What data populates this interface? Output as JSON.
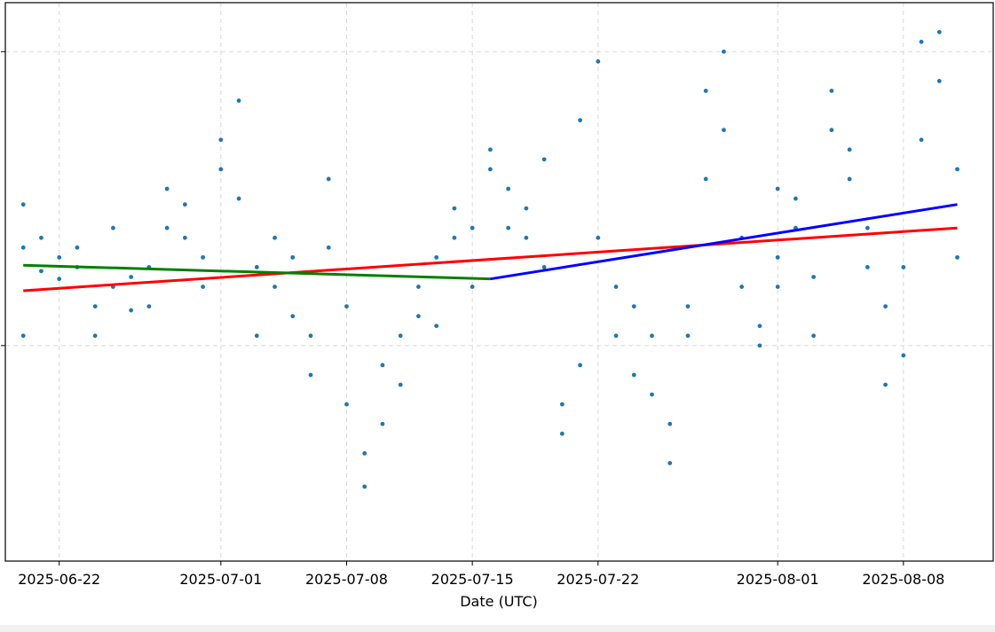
{
  "chart_data": {
    "type": "scatter",
    "title": "",
    "xlabel": "Date (UTC)",
    "ylabel": "",
    "x_axis_type": "date",
    "xlim": [
      "2025-06-19",
      "2025-08-13"
    ],
    "ylim": [
      -1.1,
      1.75
    ],
    "yticks": [
      0,
      1.5
    ],
    "xtick_labels": [
      "2025-06-22",
      "2025-07-01",
      "2025-07-08",
      "2025-07-15",
      "2025-07-22",
      "2025-08-01",
      "2025-08-08"
    ],
    "xtick_dates": [
      "2025-06-22",
      "2025-07-01",
      "2025-07-08",
      "2025-07-15",
      "2025-07-22",
      "2025-08-01",
      "2025-08-08"
    ],
    "grid": true,
    "colors": {
      "points": "#1f77b4",
      "trend_overall": "#ff0000",
      "trend_first_half": "#008000",
      "trend_second_half": "#0000ff",
      "grid": "#d9d9d9"
    },
    "series": [
      {
        "kind": "points",
        "points": [
          {
            "x": "2025-06-20",
            "y": 0.05
          },
          {
            "x": "2025-06-20",
            "y": 0.5
          },
          {
            "x": "2025-06-20",
            "y": 0.72
          },
          {
            "x": "2025-06-21",
            "y": 0.55
          },
          {
            "x": "2025-06-21",
            "y": 0.38
          },
          {
            "x": "2025-06-22",
            "y": 0.45
          },
          {
            "x": "2025-06-22",
            "y": 0.34
          },
          {
            "x": "2025-06-23",
            "y": 0.5
          },
          {
            "x": "2025-06-23",
            "y": 0.4
          },
          {
            "x": "2025-06-24",
            "y": 0.05
          },
          {
            "x": "2025-06-24",
            "y": 0.2
          },
          {
            "x": "2025-06-25",
            "y": 0.6
          },
          {
            "x": "2025-06-25",
            "y": 0.3
          },
          {
            "x": "2025-06-26",
            "y": 0.18
          },
          {
            "x": "2025-06-26",
            "y": 0.35
          },
          {
            "x": "2025-06-27",
            "y": 0.2
          },
          {
            "x": "2025-06-27",
            "y": 0.4
          },
          {
            "x": "2025-06-28",
            "y": 0.8
          },
          {
            "x": "2025-06-28",
            "y": 0.6
          },
          {
            "x": "2025-06-29",
            "y": 0.55
          },
          {
            "x": "2025-06-29",
            "y": 0.72
          },
          {
            "x": "2025-06-30",
            "y": 0.3
          },
          {
            "x": "2025-06-30",
            "y": 0.45
          },
          {
            "x": "2025-07-01",
            "y": 1.05
          },
          {
            "x": "2025-07-01",
            "y": 0.9
          },
          {
            "x": "2025-07-02",
            "y": 1.25
          },
          {
            "x": "2025-07-02",
            "y": 0.75
          },
          {
            "x": "2025-07-03",
            "y": 0.4
          },
          {
            "x": "2025-07-03",
            "y": 0.05
          },
          {
            "x": "2025-07-04",
            "y": 0.3
          },
          {
            "x": "2025-07-04",
            "y": 0.55
          },
          {
            "x": "2025-07-05",
            "y": 0.45
          },
          {
            "x": "2025-07-05",
            "y": 0.15
          },
          {
            "x": "2025-07-06",
            "y": -0.15
          },
          {
            "x": "2025-07-06",
            "y": 0.05
          },
          {
            "x": "2025-07-07",
            "y": 0.5
          },
          {
            "x": "2025-07-07",
            "y": 0.85
          },
          {
            "x": "2025-07-08",
            "y": 0.2
          },
          {
            "x": "2025-07-08",
            "y": -0.3
          },
          {
            "x": "2025-07-09",
            "y": -0.55
          },
          {
            "x": "2025-07-09",
            "y": -0.72
          },
          {
            "x": "2025-07-10",
            "y": -0.4
          },
          {
            "x": "2025-07-10",
            "y": -0.1
          },
          {
            "x": "2025-07-11",
            "y": 0.05
          },
          {
            "x": "2025-07-11",
            "y": -0.2
          },
          {
            "x": "2025-07-12",
            "y": 0.15
          },
          {
            "x": "2025-07-12",
            "y": 0.3
          },
          {
            "x": "2025-07-13",
            "y": 0.45
          },
          {
            "x": "2025-07-13",
            "y": 0.1
          },
          {
            "x": "2025-07-14",
            "y": 0.7
          },
          {
            "x": "2025-07-14",
            "y": 0.55
          },
          {
            "x": "2025-07-15",
            "y": 0.3
          },
          {
            "x": "2025-07-15",
            "y": 0.6
          },
          {
            "x": "2025-07-16",
            "y": 0.9
          },
          {
            "x": "2025-07-16",
            "y": 1.0
          },
          {
            "x": "2025-07-17",
            "y": 0.8
          },
          {
            "x": "2025-07-17",
            "y": 0.6
          },
          {
            "x": "2025-07-18",
            "y": 0.55
          },
          {
            "x": "2025-07-18",
            "y": 0.7
          },
          {
            "x": "2025-07-19",
            "y": 0.95
          },
          {
            "x": "2025-07-19",
            "y": 0.4
          },
          {
            "x": "2025-07-20",
            "y": -0.3
          },
          {
            "x": "2025-07-20",
            "y": -0.45
          },
          {
            "x": "2025-07-21",
            "y": -0.1
          },
          {
            "x": "2025-07-21",
            "y": 1.15
          },
          {
            "x": "2025-07-22",
            "y": 1.45
          },
          {
            "x": "2025-07-22",
            "y": 0.55
          },
          {
            "x": "2025-07-23",
            "y": 0.3
          },
          {
            "x": "2025-07-23",
            "y": 0.05
          },
          {
            "x": "2025-07-24",
            "y": -0.15
          },
          {
            "x": "2025-07-24",
            "y": 0.2
          },
          {
            "x": "2025-07-25",
            "y": 0.05
          },
          {
            "x": "2025-07-25",
            "y": -0.25
          },
          {
            "x": "2025-07-26",
            "y": -0.6
          },
          {
            "x": "2025-07-26",
            "y": -0.4
          },
          {
            "x": "2025-07-27",
            "y": 0.05
          },
          {
            "x": "2025-07-27",
            "y": 0.2
          },
          {
            "x": "2025-07-28",
            "y": 0.85
          },
          {
            "x": "2025-07-28",
            "y": 1.3
          },
          {
            "x": "2025-07-29",
            "y": 1.5
          },
          {
            "x": "2025-07-29",
            "y": 1.1
          },
          {
            "x": "2025-07-30",
            "y": 0.55
          },
          {
            "x": "2025-07-30",
            "y": 0.3
          },
          {
            "x": "2025-07-31",
            "y": 0.0
          },
          {
            "x": "2025-07-31",
            "y": 0.1
          },
          {
            "x": "2025-08-01",
            "y": 0.3
          },
          {
            "x": "2025-08-01",
            "y": 0.45
          },
          {
            "x": "2025-08-01",
            "y": 0.8
          },
          {
            "x": "2025-08-02",
            "y": 0.75
          },
          {
            "x": "2025-08-02",
            "y": 0.6
          },
          {
            "x": "2025-08-03",
            "y": 0.05
          },
          {
            "x": "2025-08-03",
            "y": 0.35
          },
          {
            "x": "2025-08-04",
            "y": 1.1
          },
          {
            "x": "2025-08-04",
            "y": 1.3
          },
          {
            "x": "2025-08-05",
            "y": 1.0
          },
          {
            "x": "2025-08-05",
            "y": 0.85
          },
          {
            "x": "2025-08-06",
            "y": 0.6
          },
          {
            "x": "2025-08-06",
            "y": 0.4
          },
          {
            "x": "2025-08-07",
            "y": 0.2
          },
          {
            "x": "2025-08-07",
            "y": -0.2
          },
          {
            "x": "2025-08-08",
            "y": -0.05
          },
          {
            "x": "2025-08-08",
            "y": 0.4
          },
          {
            "x": "2025-08-09",
            "y": 1.05
          },
          {
            "x": "2025-08-09",
            "y": 1.55
          },
          {
            "x": "2025-08-10",
            "y": 1.6
          },
          {
            "x": "2025-08-10",
            "y": 1.35
          },
          {
            "x": "2025-08-11",
            "y": 0.45
          },
          {
            "x": "2025-08-11",
            "y": 0.9
          }
        ]
      },
      {
        "kind": "line",
        "color_key": "trend_overall",
        "x": [
          "2025-06-20",
          "2025-08-11"
        ],
        "y": [
          0.28,
          0.6
        ]
      },
      {
        "kind": "line",
        "color_key": "trend_first_half",
        "x": [
          "2025-06-20",
          "2025-07-16"
        ],
        "y": [
          0.41,
          0.34
        ]
      },
      {
        "kind": "line",
        "color_key": "trend_second_half",
        "x": [
          "2025-07-16",
          "2025-08-11"
        ],
        "y": [
          0.34,
          0.72
        ]
      }
    ]
  }
}
